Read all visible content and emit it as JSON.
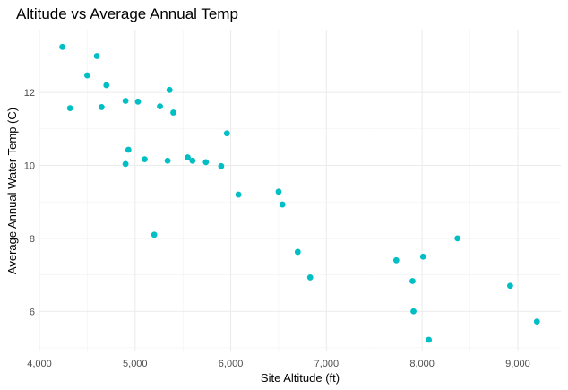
{
  "chart_data": {
    "type": "scatter",
    "title": "Altitude vs Average Annual Temp",
    "xlabel": "Site Altitude (ft)",
    "ylabel": "Average Annual Water Temp (C)",
    "xlim": [
      4000,
      9450
    ],
    "ylim": [
      4.9,
      13.7
    ],
    "xticks": [
      4000,
      5000,
      6000,
      7000,
      8000,
      9000
    ],
    "xtick_labels": [
      "4,000",
      "5,000",
      "6,000",
      "7,000",
      "8,000",
      "9,000"
    ],
    "yticks": [
      6,
      8,
      10,
      12
    ],
    "ytick_labels": [
      "6",
      "8",
      "10",
      "12"
    ],
    "grid": true,
    "legend": "none",
    "point_color": "#00BFC4",
    "points": [
      {
        "x": 4240,
        "y": 13.25
      },
      {
        "x": 4320,
        "y": 11.57
      },
      {
        "x": 4500,
        "y": 12.47
      },
      {
        "x": 4600,
        "y": 13.0
      },
      {
        "x": 4650,
        "y": 11.6
      },
      {
        "x": 4700,
        "y": 12.2
      },
      {
        "x": 4900,
        "y": 11.77
      },
      {
        "x": 4900,
        "y": 10.04
      },
      {
        "x": 4930,
        "y": 10.43
      },
      {
        "x": 5030,
        "y": 11.75
      },
      {
        "x": 5100,
        "y": 10.17
      },
      {
        "x": 5200,
        "y": 8.1
      },
      {
        "x": 5260,
        "y": 11.62
      },
      {
        "x": 5340,
        "y": 10.13
      },
      {
        "x": 5360,
        "y": 12.07
      },
      {
        "x": 5400,
        "y": 11.45
      },
      {
        "x": 5550,
        "y": 10.22
      },
      {
        "x": 5600,
        "y": 10.13
      },
      {
        "x": 5740,
        "y": 10.09
      },
      {
        "x": 5900,
        "y": 9.98
      },
      {
        "x": 5960,
        "y": 10.88
      },
      {
        "x": 6080,
        "y": 9.2
      },
      {
        "x": 6500,
        "y": 9.28
      },
      {
        "x": 6540,
        "y": 8.93
      },
      {
        "x": 6700,
        "y": 7.63
      },
      {
        "x": 6830,
        "y": 6.93
      },
      {
        "x": 7730,
        "y": 7.4
      },
      {
        "x": 7900,
        "y": 6.83
      },
      {
        "x": 7910,
        "y": 6.0
      },
      {
        "x": 8010,
        "y": 7.5
      },
      {
        "x": 8070,
        "y": 5.22
      },
      {
        "x": 8370,
        "y": 8.0
      },
      {
        "x": 8920,
        "y": 6.7
      },
      {
        "x": 9200,
        "y": 5.72
      }
    ]
  }
}
